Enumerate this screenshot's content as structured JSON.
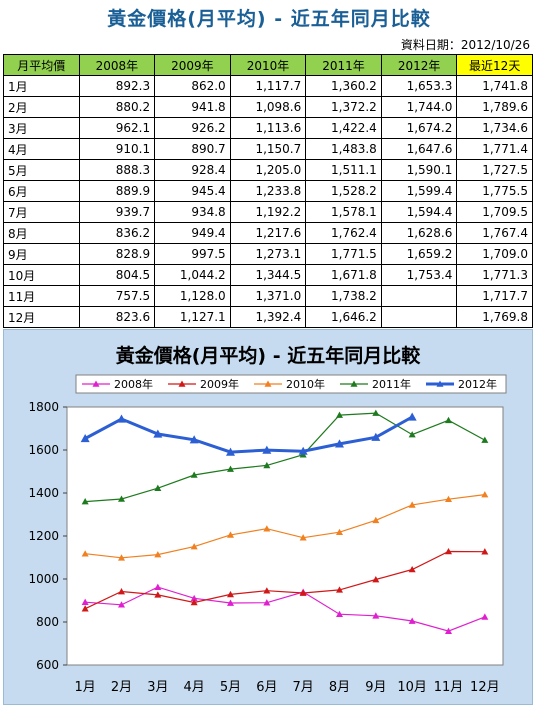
{
  "page": {
    "title": "黃金價格(月平均) - 近五年同月比較",
    "date_text": "資料日期：2012/10/26"
  },
  "table": {
    "headers": [
      "月平均價",
      "2008年",
      "2009年",
      "2010年",
      "2011年",
      "2012年",
      "最近12天"
    ],
    "rows": [
      [
        "1月",
        "892.3",
        "862.0",
        "1,117.7",
        "1,360.2",
        "1,653.3",
        "1,741.8"
      ],
      [
        "2月",
        "880.2",
        "941.8",
        "1,098.6",
        "1,372.2",
        "1,744.0",
        "1,789.6"
      ],
      [
        "3月",
        "962.1",
        "926.2",
        "1,113.6",
        "1,422.4",
        "1,674.2",
        "1,734.6"
      ],
      [
        "4月",
        "910.1",
        "890.7",
        "1,150.7",
        "1,483.8",
        "1,647.6",
        "1,771.4"
      ],
      [
        "5月",
        "888.3",
        "928.4",
        "1,205.0",
        "1,511.1",
        "1,590.1",
        "1,727.5"
      ],
      [
        "6月",
        "889.9",
        "945.4",
        "1,233.8",
        "1,528.2",
        "1,599.4",
        "1,775.5"
      ],
      [
        "7月",
        "939.7",
        "934.8",
        "1,192.2",
        "1,578.1",
        "1,594.4",
        "1,709.5"
      ],
      [
        "8月",
        "836.2",
        "949.4",
        "1,217.6",
        "1,762.4",
        "1,628.6",
        "1,767.4"
      ],
      [
        "9月",
        "828.9",
        "997.5",
        "1,273.1",
        "1,771.5",
        "1,659.2",
        "1,709.0"
      ],
      [
        "10月",
        "804.5",
        "1,044.2",
        "1,344.5",
        "1,671.8",
        "1,753.4",
        "1,771.3"
      ],
      [
        "11月",
        "757.5",
        "1,128.0",
        "1,371.0",
        "1,738.2",
        "",
        "1,717.7"
      ],
      [
        "12月",
        "823.6",
        "1,127.1",
        "1,392.4",
        "1,646.2",
        "",
        "1,769.8"
      ]
    ]
  },
  "chart_data": {
    "type": "line",
    "title": "黃金價格(月平均) - 近五年同月比較",
    "xlabel": "",
    "ylabel": "",
    "categories": [
      "1月",
      "2月",
      "3月",
      "4月",
      "5月",
      "6月",
      "7月",
      "8月",
      "9月",
      "10月",
      "11月",
      "12月"
    ],
    "ylim": [
      600,
      1800
    ],
    "yticks": [
      600,
      800,
      1000,
      1200,
      1400,
      1600,
      1800
    ],
    "grid": false,
    "legend_position": "top",
    "series": [
      {
        "name": "2008年",
        "color": "#e020d0",
        "marker": "triangle",
        "width": 1.2,
        "values": [
          892.3,
          880.2,
          962.1,
          910.1,
          888.3,
          889.9,
          939.7,
          836.2,
          828.9,
          804.5,
          757.5,
          823.6
        ]
      },
      {
        "name": "2009年",
        "color": "#d01818",
        "marker": "triangle",
        "width": 1.2,
        "values": [
          862.0,
          941.8,
          926.2,
          890.7,
          928.4,
          945.4,
          934.8,
          949.4,
          997.5,
          1044.2,
          1128.0,
          1127.1
        ]
      },
      {
        "name": "2010年",
        "color": "#f08020",
        "marker": "triangle",
        "width": 1.2,
        "values": [
          1117.7,
          1098.6,
          1113.6,
          1150.7,
          1205.0,
          1233.8,
          1192.2,
          1217.6,
          1273.1,
          1344.5,
          1371.0,
          1392.4
        ]
      },
      {
        "name": "2011年",
        "color": "#1e7a1e",
        "marker": "triangle",
        "width": 1.2,
        "values": [
          1360.2,
          1372.2,
          1422.4,
          1483.8,
          1511.1,
          1528.2,
          1578.1,
          1762.4,
          1771.5,
          1671.8,
          1738.2,
          1646.2
        ]
      },
      {
        "name": "2012年",
        "color": "#2c5fd4",
        "marker": "triangle",
        "width": 3,
        "values": [
          1653.3,
          1744.0,
          1674.2,
          1647.6,
          1590.1,
          1599.4,
          1594.4,
          1628.6,
          1659.2,
          1753.4,
          null,
          null
        ]
      }
    ]
  }
}
